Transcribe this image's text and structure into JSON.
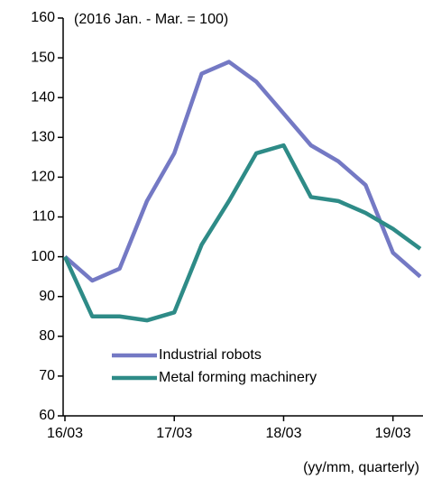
{
  "chart_data": {
    "type": "line",
    "annotations": [
      "(2016 Jan. - Mar. = 100)",
      "(yy/mm, quarterly)"
    ],
    "categories": [
      "16/03",
      null,
      null,
      null,
      "17/03",
      null,
      null,
      null,
      "18/03",
      null,
      null,
      null,
      "19/03",
      null
    ],
    "series": [
      {
        "name": "Industrial robots",
        "color": "#7479c4",
        "values": [
          100,
          94,
          97,
          114,
          126,
          146,
          149,
          144,
          136,
          128,
          124,
          118,
          101,
          95
        ]
      },
      {
        "name": "Metal forming machinery",
        "color": "#2e8b87",
        "values": [
          100,
          85,
          85,
          84,
          86,
          103,
          114,
          126,
          128,
          115,
          114,
          111,
          107,
          102
        ]
      }
    ],
    "ylim": [
      60,
      160
    ],
    "yticks": [
      60,
      70,
      80,
      90,
      100,
      110,
      120,
      130,
      140,
      150,
      160
    ],
    "legend": "lower left",
    "grid": false
  }
}
